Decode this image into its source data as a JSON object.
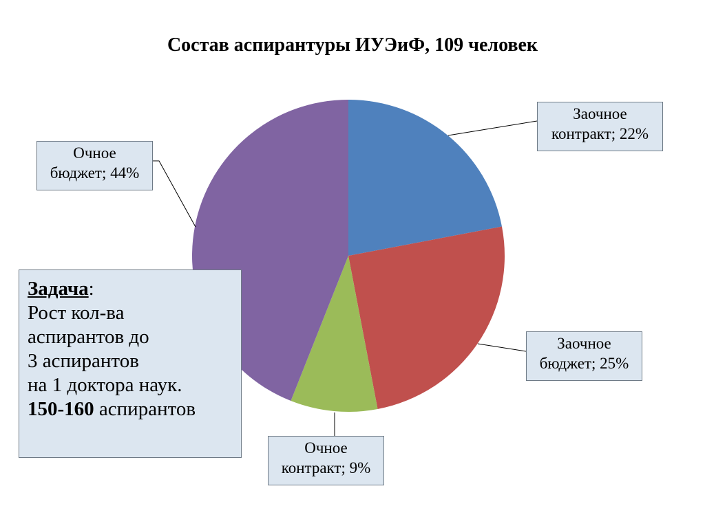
{
  "chart_data": {
    "type": "pie",
    "title": "Состав аспирантуры ИУЭиФ, 109 человек",
    "start_angle_deg": 0,
    "direction": "clockwise",
    "slices": [
      {
        "name": "Заочное контракт",
        "line1": "Заочное",
        "line2": "контракт; 22%",
        "value": 22,
        "color": "#4f81bd"
      },
      {
        "name": "Заочное бюджет",
        "line1": "Заочное",
        "line2": "бюджет; 25%",
        "value": 25,
        "color": "#c0504d"
      },
      {
        "name": "Очное контракт",
        "line1": "Очное",
        "line2": "контракт; 9%",
        "value": 9,
        "color": "#9bbb59"
      },
      {
        "name": "Очное бюджет",
        "line1": "Очное",
        "line2": "бюджет; 44%",
        "value": 44,
        "color": "#8064a2"
      }
    ]
  },
  "task": {
    "heading": "Задача",
    "colon": ":",
    "line1": "Рост кол-ва",
    "line2": "аспирантов до",
    "line3": "3 аспирантов",
    "line4": "на 1 доктора наук.",
    "bold_range": "150-160",
    "line5_rest": " аспирантов"
  }
}
